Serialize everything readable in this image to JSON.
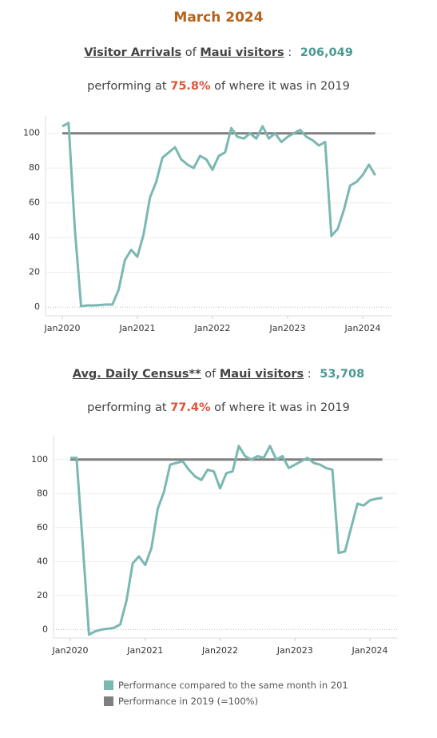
{
  "title": "March 2024",
  "chart_data": [
    {
      "type": "line",
      "measure": "Visitor Arrivals",
      "of": "of",
      "group": "Maui visitors",
      "colon": ":",
      "total": "206,049",
      "performing": "performing at",
      "percent": "75.8%",
      "tail": "of where it was in 2019",
      "x": [
        "2020-01",
        "2020-02",
        "2020-03",
        "2020-04",
        "2020-05",
        "2020-06",
        "2020-07",
        "2020-08",
        "2020-09",
        "2020-10",
        "2020-11",
        "2020-12",
        "2021-01",
        "2021-02",
        "2021-03",
        "2021-04",
        "2021-05",
        "2021-06",
        "2021-07",
        "2021-08",
        "2021-09",
        "2021-10",
        "2021-11",
        "2021-12",
        "2022-01",
        "2022-02",
        "2022-03",
        "2022-04",
        "2022-05",
        "2022-06",
        "2022-07",
        "2022-08",
        "2022-09",
        "2022-10",
        "2022-11",
        "2022-12",
        "2023-01",
        "2023-02",
        "2023-03",
        "2023-04",
        "2023-05",
        "2023-06",
        "2023-07",
        "2023-08",
        "2023-09",
        "2023-10",
        "2023-11",
        "2023-12",
        "2024-01",
        "2024-02",
        "2024-03"
      ],
      "xticks": [
        {
          "value": "2020-01",
          "label": "Jan2020"
        },
        {
          "value": "2021-01",
          "label": "Jan2021"
        },
        {
          "value": "2022-01",
          "label": "Jan2022"
        },
        {
          "value": "2023-01",
          "label": "Jan2023"
        },
        {
          "value": "2024-01",
          "label": "Jan2024"
        }
      ],
      "ylim": [
        -5,
        110
      ],
      "yticks": [
        0,
        20,
        40,
        60,
        80,
        100
      ],
      "grid": true,
      "series": [
        {
          "name": "Performance compared to the same month in 201",
          "color": "#7ab8b1",
          "values": [
            104,
            106,
            45,
            0.5,
            1,
            1,
            1.2,
            1.5,
            1.5,
            10,
            27,
            33,
            29,
            42,
            63,
            72,
            86,
            89,
            92,
            85,
            82,
            80,
            87,
            85,
            79,
            87,
            89,
            103,
            98,
            97,
            100,
            97,
            104,
            97,
            100,
            95,
            98,
            100,
            102,
            98,
            96,
            93,
            95,
            41,
            45,
            56,
            70,
            72,
            76,
            82,
            75.8
          ]
        },
        {
          "name": "Performance in 2019 (=100%)",
          "color": "#7f7f7f",
          "values": [
            100,
            100,
            100,
            100,
            100,
            100,
            100,
            100,
            100,
            100,
            100,
            100,
            100,
            100,
            100,
            100,
            100,
            100,
            100,
            100,
            100,
            100,
            100,
            100,
            100,
            100,
            100,
            100,
            100,
            100,
            100,
            100,
            100,
            100,
            100,
            100,
            100,
            100,
            100,
            100,
            100,
            100,
            100,
            100,
            100,
            100,
            100,
            100,
            100,
            100,
            100
          ]
        }
      ]
    },
    {
      "type": "line",
      "measure": "Avg. Daily Census**",
      "of": "of",
      "group": "Maui visitors",
      "colon": ":",
      "total": "53,708",
      "performing": "performing at",
      "percent": "77.4%",
      "tail": "of where it was in 2019",
      "x": [
        "2020-01",
        "2020-02",
        "2020-03",
        "2020-04",
        "2020-05",
        "2020-06",
        "2020-07",
        "2020-08",
        "2020-09",
        "2020-10",
        "2020-11",
        "2020-12",
        "2021-01",
        "2021-02",
        "2021-03",
        "2021-04",
        "2021-05",
        "2021-06",
        "2021-07",
        "2021-08",
        "2021-09",
        "2021-10",
        "2021-11",
        "2021-12",
        "2022-01",
        "2022-02",
        "2022-03",
        "2022-04",
        "2022-05",
        "2022-06",
        "2022-07",
        "2022-08",
        "2022-09",
        "2022-10",
        "2022-11",
        "2022-12",
        "2023-01",
        "2023-02",
        "2023-03",
        "2023-04",
        "2023-05",
        "2023-06",
        "2023-07",
        "2023-08",
        "2023-09",
        "2023-10",
        "2023-11",
        "2023-12",
        "2024-01",
        "2024-02",
        "2024-03"
      ],
      "xticks": [
        {
          "value": "2020-01",
          "label": "Jan2020"
        },
        {
          "value": "2021-01",
          "label": "Jan2021"
        },
        {
          "value": "2022-01",
          "label": "Jan2022"
        },
        {
          "value": "2023-01",
          "label": "Jan2023"
        },
        {
          "value": "2024-01",
          "label": "Jan2024"
        }
      ],
      "ylim": [
        -5,
        114
      ],
      "yticks": [
        0,
        20,
        40,
        60,
        80,
        100
      ],
      "grid": true,
      "series": [
        {
          "color": "#7ab8b1",
          "values": [
            101,
            101,
            50,
            -3,
            -1,
            0,
            0.5,
            1,
            3,
            17,
            39,
            43,
            38,
            48,
            71,
            81,
            97,
            98,
            99,
            94,
            90,
            88,
            94,
            93,
            83,
            92,
            93,
            108,
            102,
            100,
            102,
            101,
            108,
            100,
            102,
            95,
            97,
            99,
            101,
            98,
            97,
            95,
            94,
            45,
            46,
            60,
            74,
            73,
            76,
            77,
            77.4
          ]
        },
        {
          "color": "#7f7f7f",
          "values": [
            100,
            100,
            100,
            100,
            100,
            100,
            100,
            100,
            100,
            100,
            100,
            100,
            100,
            100,
            100,
            100,
            100,
            100,
            100,
            100,
            100,
            100,
            100,
            100,
            100,
            100,
            100,
            100,
            100,
            100,
            100,
            100,
            100,
            100,
            100,
            100,
            100,
            100,
            100,
            100,
            100,
            100,
            100,
            100,
            100,
            100,
            100,
            100,
            100,
            100,
            100
          ]
        }
      ]
    }
  ]
}
